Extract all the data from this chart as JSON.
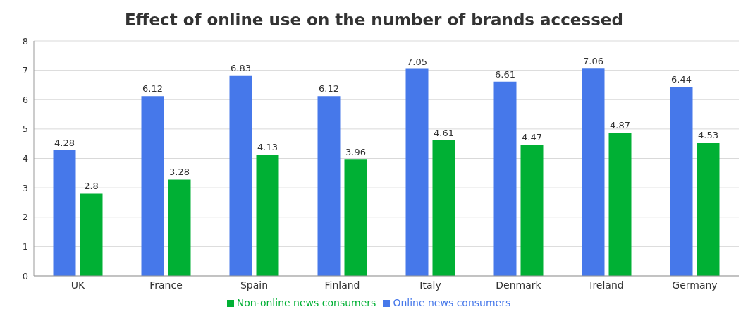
{
  "chart_data": {
    "type": "bar",
    "title": "Effect of online use on the number of brands accessed",
    "categories": [
      "UK",
      "France",
      "Spain",
      "Finland",
      "Italy",
      "Denmark",
      "Ireland",
      "Germany"
    ],
    "series": [
      {
        "name": "Online news consumers",
        "color": "#4678ea",
        "values": [
          4.28,
          6.12,
          6.83,
          6.12,
          7.05,
          6.61,
          7.06,
          6.44
        ]
      },
      {
        "name": "Non-online news consumers",
        "color": "#00b034",
        "values": [
          2.8,
          3.28,
          4.13,
          3.96,
          4.61,
          4.47,
          4.87,
          4.53
        ]
      }
    ],
    "ylim": [
      0,
      8
    ],
    "yticks": [
      0,
      1,
      2,
      3,
      4,
      5,
      6,
      7,
      8
    ],
    "grid": "y",
    "legend": "bottom",
    "data_labels": true
  }
}
